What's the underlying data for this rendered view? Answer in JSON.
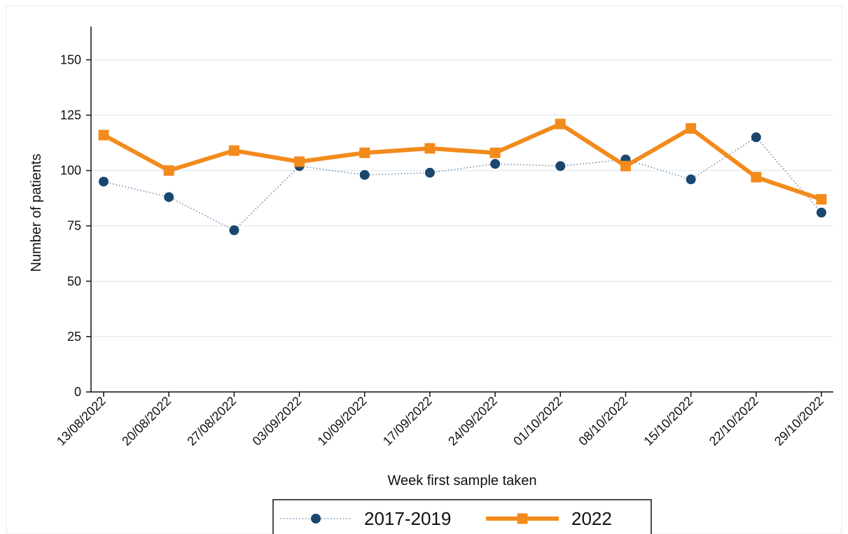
{
  "chart_data": {
    "type": "line",
    "xlabel": "Week first sample taken",
    "ylabel": "Number of patients",
    "ylim": [
      0,
      165
    ],
    "yticks": [
      0,
      25,
      50,
      75,
      100,
      125,
      150
    ],
    "grid": true,
    "legend_position": "bottom",
    "categories": [
      "13/08/2022",
      "20/08/2022",
      "27/08/2022",
      "03/09/2022",
      "10/09/2022",
      "17/09/2022",
      "24/09/2022",
      "01/10/2022",
      "08/10/2022",
      "15/10/2022",
      "22/10/2022",
      "29/10/2022"
    ],
    "series": [
      {
        "name": "2017-2019",
        "values": [
          95,
          88,
          73,
          102,
          98,
          99,
          103,
          102,
          105,
          96,
          115,
          81
        ],
        "color": "#1a476f",
        "line_style": "dotted",
        "marker": "circle"
      },
      {
        "name": "2022",
        "values": [
          116,
          100,
          109,
          104,
          108,
          110,
          108,
          121,
          102,
          119,
          97,
          87
        ],
        "color": "#f28b1c",
        "line_style": "solid",
        "marker": "square"
      }
    ]
  }
}
